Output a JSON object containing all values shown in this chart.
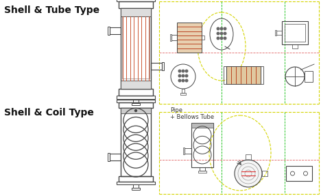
{
  "bg_color": "#ffffff",
  "title1": "Shell & Tube Type",
  "title2": "Shell & Coil Type",
  "label_pipe_bellows": "Pipe\n+ Bellows Tube",
  "title_fontsize": 10,
  "label_fontsize": 6,
  "line_colors": {
    "red_dash": "#e06060",
    "yellow_green": "#d4d400",
    "green": "#00bb00",
    "cyan": "#00bbbb"
  },
  "fig_width": 4.68,
  "fig_height": 2.87,
  "dpi": 100
}
